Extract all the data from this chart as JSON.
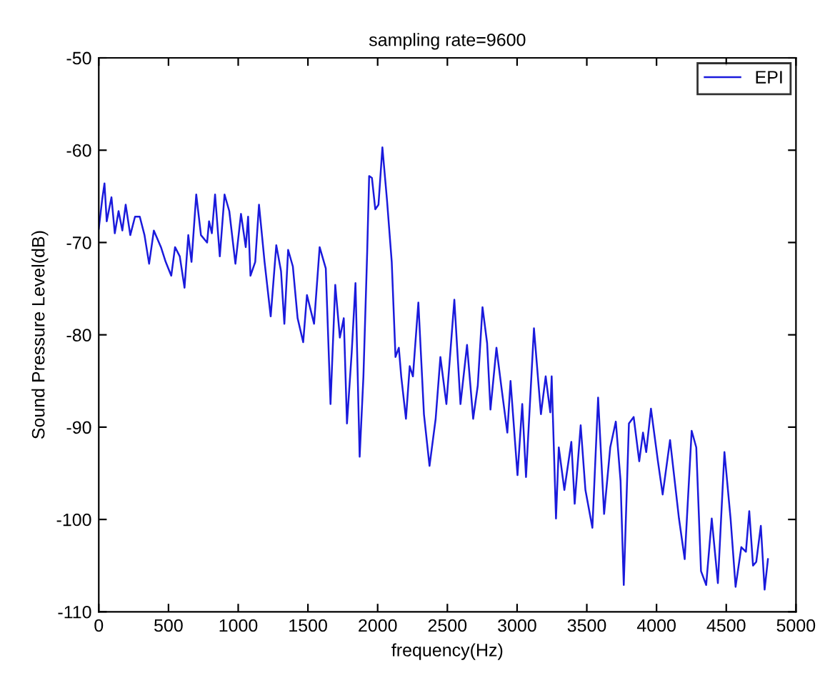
{
  "chart_data": {
    "type": "line",
    "title": "sampling rate=9600",
    "xlabel": "frequency(Hz)",
    "ylabel": "Sound Pressure Level(dB)",
    "xlim": [
      0,
      5000
    ],
    "xticks": [
      0,
      500,
      1000,
      1500,
      2000,
      2500,
      3000,
      3500,
      4000,
      4500,
      5000
    ],
    "ylim": [
      -110,
      -50
    ],
    "yticks": [
      -110,
      -100,
      -90,
      -80,
      -70,
      -60,
      -50
    ],
    "grid": false,
    "legend": "top right",
    "line_style": "solid",
    "marker": "none",
    "series": [
      {
        "name": "EPI",
        "color": "#1a1adc",
        "x": [
          0,
          24,
          41,
          57,
          91,
          115,
          142,
          169,
          193,
          226,
          260,
          294,
          328,
          361,
          395,
          446,
          480,
          520,
          547,
          581,
          615,
          642,
          665,
          699,
          733,
          777,
          791,
          811,
          834,
          868,
          902,
          936,
          980,
          1020,
          1054,
          1071,
          1088,
          1122,
          1149,
          1189,
          1233,
          1273,
          1307,
          1331,
          1358,
          1392,
          1426,
          1466,
          1493,
          1544,
          1584,
          1628,
          1662,
          1696,
          1729,
          1757,
          1780,
          1814,
          1841,
          1871,
          1898,
          1925,
          1939,
          1959,
          1983,
          2006,
          2034,
          2067,
          2101,
          2128,
          2152,
          2169,
          2203,
          2230,
          2253,
          2292,
          2332,
          2372,
          2416,
          2450,
          2493,
          2550,
          2594,
          2641,
          2685,
          2718,
          2752,
          2785,
          2809,
          2852,
          2886,
          2930,
          2953,
          3003,
          3037,
          3064,
          3121,
          3171,
          3205,
          3238,
          3248,
          3279,
          3299,
          3339,
          3389,
          3413,
          3456,
          3490,
          3540,
          3581,
          3624,
          3668,
          3708,
          3742,
          3765,
          3802,
          3836,
          3876,
          3903,
          3926,
          3960,
          4010,
          4044,
          4097,
          4161,
          4202,
          4252,
          4285,
          4319,
          4356,
          4396,
          4440,
          4487,
          4531,
          4567,
          4608,
          4641,
          4665,
          4692,
          4715,
          4748,
          4775,
          4799
        ],
        "values": [
          -68.5,
          -65.4,
          -63.6,
          -67.7,
          -65.1,
          -69,
          -66.6,
          -68.7,
          -65.9,
          -69.2,
          -67.2,
          -67.2,
          -69.2,
          -72.3,
          -68.7,
          -70.5,
          -72.1,
          -73.6,
          -70.5,
          -71.5,
          -74.9,
          -69.2,
          -72.1,
          -64.8,
          -69.2,
          -70,
          -67.7,
          -69,
          -64.8,
          -71.5,
          -64.8,
          -66.6,
          -72.3,
          -66.9,
          -70.5,
          -67.2,
          -73.6,
          -72.1,
          -65.9,
          -72.1,
          -78,
          -70.3,
          -73.1,
          -78.8,
          -70.8,
          -72.6,
          -78.2,
          -80.8,
          -75.7,
          -78.8,
          -70.5,
          -72.8,
          -87.5,
          -74.6,
          -80.3,
          -78.2,
          -89.6,
          -81.9,
          -74.4,
          -93.2,
          -84.5,
          -71,
          -62.8,
          -63,
          -66.4,
          -65.9,
          -59.7,
          -65.4,
          -72.1,
          -82.4,
          -81.4,
          -84.5,
          -89.1,
          -83.4,
          -84.5,
          -76.5,
          -88.6,
          -94.2,
          -89.1,
          -82.4,
          -87.5,
          -76.2,
          -87.5,
          -81.1,
          -89.1,
          -85.5,
          -77,
          -80.9,
          -88.1,
          -81.4,
          -85.5,
          -90.6,
          -85,
          -95.2,
          -87.5,
          -95.4,
          -79.3,
          -88.6,
          -84.5,
          -88.4,
          -84.5,
          -99.9,
          -92.2,
          -96.8,
          -91.6,
          -98.3,
          -89.8,
          -96.8,
          -100.9,
          -86.8,
          -99.4,
          -92.2,
          -89.4,
          -95.8,
          -107.1,
          -89.6,
          -88.9,
          -93.7,
          -90.6,
          -92.7,
          -88,
          -93.7,
          -97.3,
          -91.4,
          -99.9,
          -104.3,
          -90.4,
          -92.2,
          -105.6,
          -107.1,
          -99.9,
          -106.9,
          -92.7,
          -99.9,
          -107.3,
          -103,
          -103.5,
          -99.1,
          -105,
          -104.6,
          -100.7,
          -107.6,
          -104.3
        ]
      }
    ]
  }
}
